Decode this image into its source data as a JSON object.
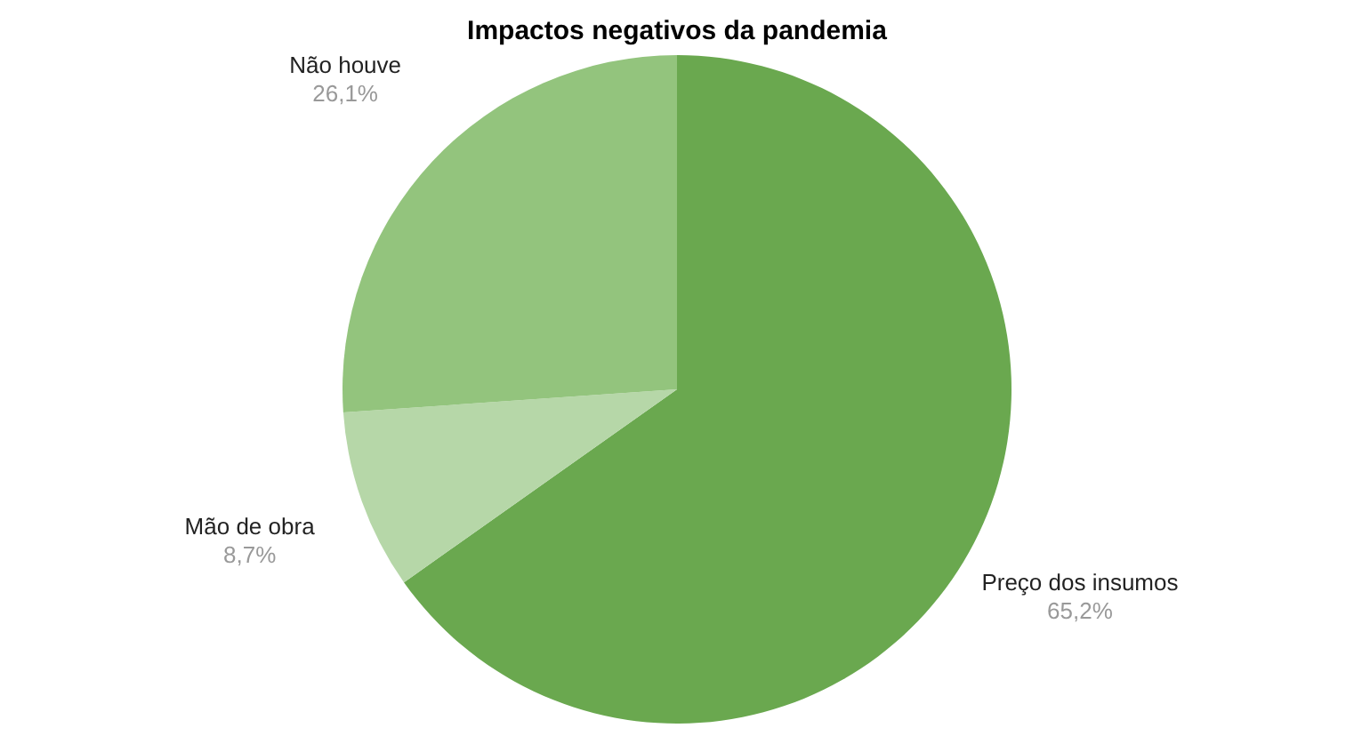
{
  "chart_data": {
    "type": "pie",
    "title": "Impactos negativos da pandemia",
    "categories": [
      "Preço dos insumos",
      "Mão de obra",
      "Não houve"
    ],
    "values": [
      65.2,
      8.7,
      26.1
    ],
    "colors": [
      "#6aa84f",
      "#b6d7a8",
      "#93c47d"
    ],
    "value_labels": [
      "65,2%",
      "8,7%",
      "26,1%"
    ]
  }
}
